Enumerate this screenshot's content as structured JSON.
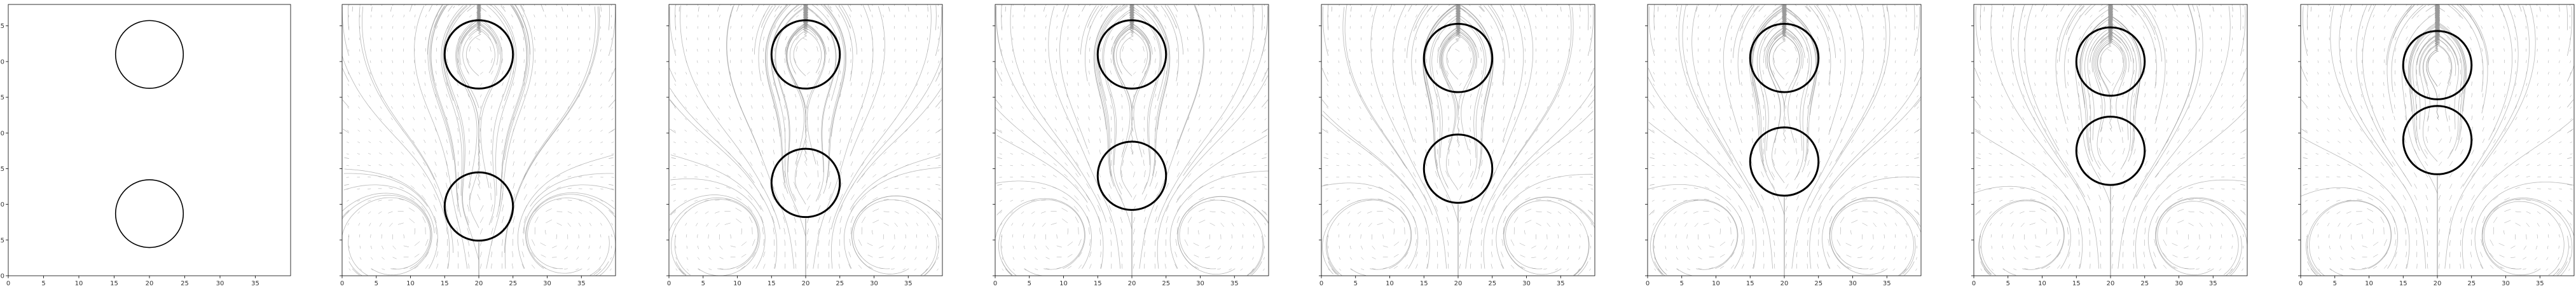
{
  "figure": {
    "panel_count": 8,
    "colors": {
      "frame": "#000000",
      "circle": "#000000",
      "streamline": "#9a9a9a",
      "quiver": "#555555"
    }
  },
  "chart_data": [
    {
      "type": "scatter",
      "title": "",
      "xlabel": "",
      "ylabel": "",
      "xlim": [
        0,
        40
      ],
      "ylim": [
        0,
        38
      ],
      "xticks": [
        0,
        5,
        10,
        15,
        20,
        25,
        30,
        35
      ],
      "yticks": [
        0,
        5,
        10,
        15,
        20,
        25,
        30,
        35
      ],
      "field_shown": false,
      "circles": [
        {
          "cx": 20,
          "cy": 31,
          "r": 4.8
        },
        {
          "cx": 20,
          "cy": 8.7,
          "r": 4.8
        }
      ]
    },
    {
      "type": "scatter",
      "title": "",
      "xlabel": "",
      "ylabel": "",
      "xlim": [
        0,
        40
      ],
      "ylim": [
        0,
        38
      ],
      "xticks": [
        0,
        5,
        10,
        15,
        20,
        25,
        30,
        35
      ],
      "yticks": [
        0,
        5,
        10,
        15,
        20,
        25,
        30,
        35
      ],
      "field_shown": true,
      "circles": [
        {
          "cx": 20,
          "cy": 31,
          "r": 5
        },
        {
          "cx": 20,
          "cy": 9.7,
          "r": 5
        }
      ]
    },
    {
      "type": "scatter",
      "title": "",
      "xlabel": "",
      "ylabel": "",
      "xlim": [
        0,
        40
      ],
      "ylim": [
        0,
        38
      ],
      "xticks": [
        0,
        5,
        10,
        15,
        20,
        25,
        30,
        35
      ],
      "yticks": [
        0,
        5,
        10,
        15,
        20,
        25,
        30,
        35
      ],
      "field_shown": true,
      "circles": [
        {
          "cx": 20,
          "cy": 31,
          "r": 5
        },
        {
          "cx": 20,
          "cy": 13,
          "r": 5
        }
      ]
    },
    {
      "type": "scatter",
      "title": "",
      "xlabel": "",
      "ylabel": "",
      "xlim": [
        0,
        40
      ],
      "ylim": [
        0,
        38
      ],
      "xticks": [
        0,
        5,
        10,
        15,
        20,
        25,
        30,
        35
      ],
      "yticks": [
        0,
        5,
        10,
        15,
        20,
        25,
        30,
        35
      ],
      "field_shown": true,
      "circles": [
        {
          "cx": 20,
          "cy": 31,
          "r": 5
        },
        {
          "cx": 20,
          "cy": 14,
          "r": 5
        }
      ]
    },
    {
      "type": "scatter",
      "title": "",
      "xlabel": "",
      "ylabel": "",
      "xlim": [
        0,
        40
      ],
      "ylim": [
        0,
        38
      ],
      "xticks": [
        0,
        5,
        10,
        15,
        20,
        25,
        30,
        35
      ],
      "yticks": [
        0,
        5,
        10,
        15,
        20,
        25,
        30,
        35
      ],
      "field_shown": true,
      "circles": [
        {
          "cx": 20,
          "cy": 30.5,
          "r": 5
        },
        {
          "cx": 20,
          "cy": 15,
          "r": 5
        }
      ]
    },
    {
      "type": "scatter",
      "title": "",
      "xlabel": "",
      "ylabel": "",
      "xlim": [
        0,
        40
      ],
      "ylim": [
        0,
        38
      ],
      "xticks": [
        0,
        5,
        10,
        15,
        20,
        25,
        30,
        35
      ],
      "yticks": [
        0,
        5,
        10,
        15,
        20,
        25,
        30,
        35
      ],
      "field_shown": true,
      "circles": [
        {
          "cx": 20,
          "cy": 30.5,
          "r": 5
        },
        {
          "cx": 20,
          "cy": 16,
          "r": 5
        }
      ]
    },
    {
      "type": "scatter",
      "title": "",
      "xlabel": "",
      "ylabel": "",
      "xlim": [
        0,
        40
      ],
      "ylim": [
        0,
        38
      ],
      "xticks": [
        0,
        5,
        10,
        15,
        20,
        25,
        30,
        35
      ],
      "yticks": [
        0,
        5,
        10,
        15,
        20,
        25,
        30,
        35
      ],
      "field_shown": true,
      "circles": [
        {
          "cx": 20,
          "cy": 30,
          "r": 5
        },
        {
          "cx": 20,
          "cy": 17.5,
          "r": 5
        }
      ]
    },
    {
      "type": "scatter",
      "title": "",
      "xlabel": "",
      "ylabel": "",
      "xlim": [
        0,
        40
      ],
      "ylim": [
        0,
        38
      ],
      "xticks": [
        0,
        5,
        10,
        15,
        20,
        25,
        30,
        35
      ],
      "yticks": [
        0,
        5,
        10,
        15,
        20,
        25,
        30,
        35
      ],
      "field_shown": true,
      "circles": [
        {
          "cx": 20,
          "cy": 29.5,
          "r": 5
        },
        {
          "cx": 20,
          "cy": 19,
          "r": 5
        }
      ]
    }
  ]
}
